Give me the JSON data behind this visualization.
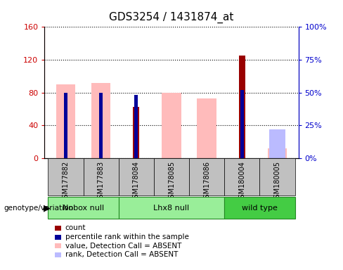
{
  "title": "GDS3254 / 1431874_at",
  "samples": [
    "GSM177882",
    "GSM177883",
    "GSM178084",
    "GSM178085",
    "GSM178086",
    "GSM180004",
    "GSM180005"
  ],
  "count_values": [
    null,
    null,
    62,
    null,
    null,
    125,
    null
  ],
  "percentile_values": [
    50,
    50,
    48,
    null,
    null,
    52,
    null
  ],
  "value_absent": [
    90,
    92,
    null,
    80,
    73,
    null,
    12
  ],
  "rank_absent": [
    null,
    null,
    null,
    null,
    null,
    null,
    22
  ],
  "ylim_left": [
    0,
    160
  ],
  "ylim_right": [
    0,
    100
  ],
  "yticks_left": [
    0,
    40,
    80,
    120,
    160
  ],
  "yticks_right": [
    0,
    25,
    50,
    75,
    100
  ],
  "ytick_labels_left": [
    "0",
    "40",
    "80",
    "120",
    "160"
  ],
  "ytick_labels_right": [
    "0%",
    "25%",
    "50%",
    "75%",
    "100%"
  ],
  "color_count": "#990000",
  "color_percentile": "#000099",
  "color_value_absent": "#ffbbbb",
  "color_rank_absent": "#bbbbff",
  "group_row_color": "#c0c0c0",
  "group_spans": [
    {
      "label": "Nobox null",
      "indices": [
        0,
        1
      ],
      "color": "#99ee99"
    },
    {
      "label": "Lhx8 null",
      "indices": [
        2,
        3,
        4
      ],
      "color": "#99ee99"
    },
    {
      "label": "wild type",
      "indices": [
        5,
        6
      ],
      "color": "#44cc44"
    }
  ],
  "legend_items": [
    {
      "label": "count",
      "color": "#990000"
    },
    {
      "label": "percentile rank within the sample",
      "color": "#000099"
    },
    {
      "label": "value, Detection Call = ABSENT",
      "color": "#ffbbbb"
    },
    {
      "label": "rank, Detection Call = ABSENT",
      "color": "#bbbbff"
    }
  ]
}
